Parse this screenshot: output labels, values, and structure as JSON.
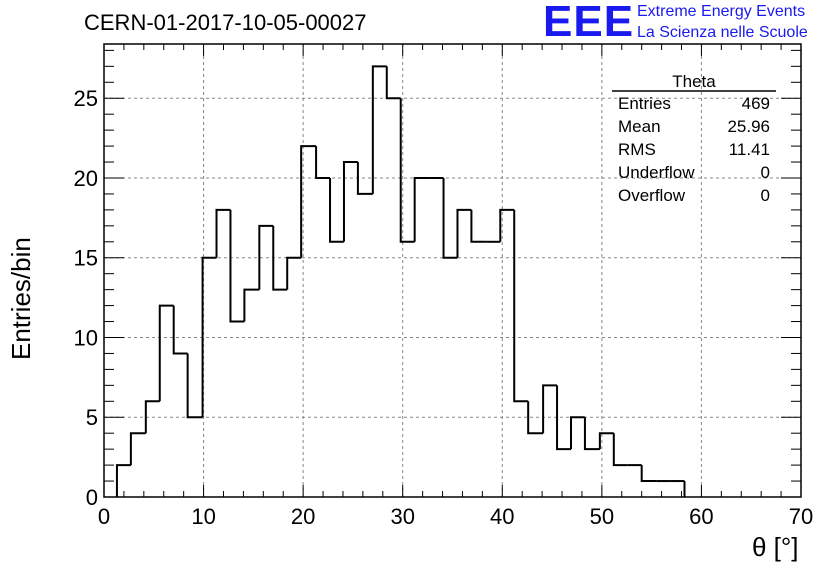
{
  "title": "CERN-01-2017-10-05-00027",
  "logo": {
    "mark": "EEE",
    "line1": "Extreme Energy Events",
    "line2": "La Scienza nelle Scuole",
    "color": "#1a1aee"
  },
  "stats": {
    "name": "Theta",
    "rows": [
      {
        "key": "Entries",
        "value": "469"
      },
      {
        "key": "Mean",
        "value": "25.96"
      },
      {
        "key": "RMS",
        "value": "11.41"
      },
      {
        "key": "Underflow",
        "value": "0"
      },
      {
        "key": "Overflow",
        "value": "0"
      }
    ]
  },
  "chart_data": {
    "type": "bar",
    "style": "step-histogram",
    "xlabel": "θ [°]",
    "ylabel": "Entries/bin",
    "xlim": [
      0,
      70
    ],
    "ylim": [
      0,
      28.4
    ],
    "xticks": [
      0,
      10,
      20,
      30,
      40,
      50,
      60,
      70
    ],
    "yticks": [
      0,
      5,
      10,
      15,
      20,
      25
    ],
    "grid": true,
    "bin_edges": [
      1.3,
      2.7,
      4.2,
      5.6,
      7.0,
      8.4,
      9.9,
      11.3,
      12.7,
      14.1,
      15.6,
      17.0,
      18.4,
      19.8,
      21.3,
      22.7,
      24.1,
      25.5,
      27.0,
      28.4,
      29.8,
      31.2,
      32.7,
      34.1,
      35.5,
      36.9,
      38.4,
      39.8,
      41.2,
      42.6,
      44.1,
      45.5,
      46.9,
      48.3,
      49.8,
      51.2,
      52.6,
      54.0,
      55.5,
      56.9,
      58.3
    ],
    "values": [
      2,
      4,
      6,
      12,
      9,
      5,
      15,
      18,
      11,
      13,
      17,
      13,
      15,
      22,
      20,
      16,
      21,
      19,
      27,
      25,
      16,
      20,
      20,
      15,
      18,
      16,
      16,
      18,
      6,
      4,
      7,
      3,
      5,
      3,
      4,
      2,
      2,
      1,
      1,
      1
    ],
    "line_color": "#000000",
    "grid_color": "#888888"
  }
}
